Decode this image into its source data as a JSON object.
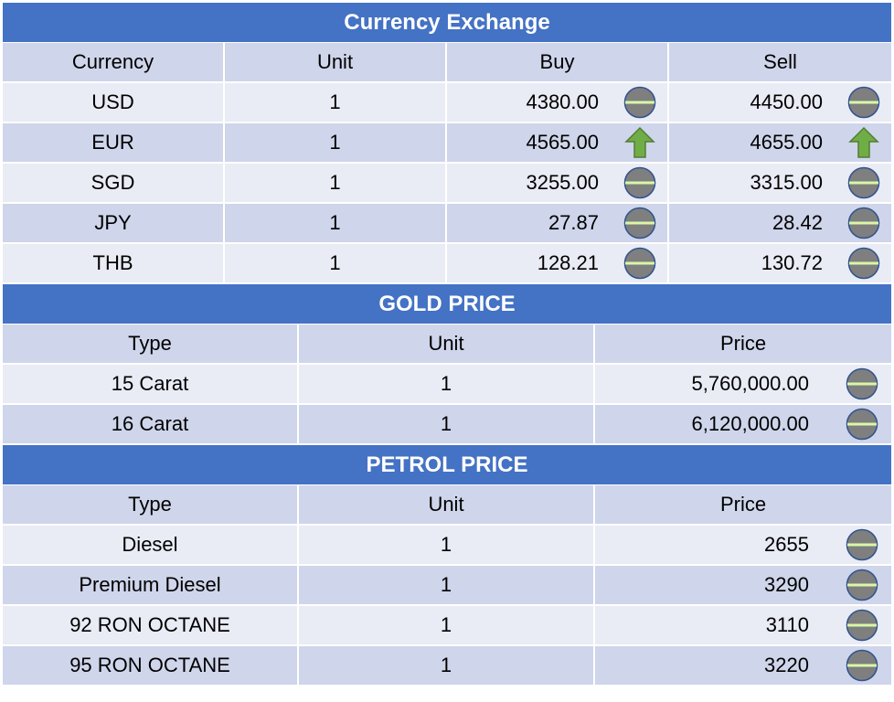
{
  "currency": {
    "title": "Currency Exchange",
    "headers": [
      "Currency",
      "Unit",
      "Buy",
      "Sell"
    ],
    "rows": [
      {
        "currency": "USD",
        "unit": "1",
        "buy": "4380.00",
        "buy_trend": "neutral",
        "sell": "4450.00",
        "sell_trend": "neutral"
      },
      {
        "currency": "EUR",
        "unit": "1",
        "buy": "4565.00",
        "buy_trend": "up",
        "sell": "4655.00",
        "sell_trend": "up"
      },
      {
        "currency": "SGD",
        "unit": "1",
        "buy": "3255.00",
        "buy_trend": "neutral",
        "sell": "3315.00",
        "sell_trend": "neutral"
      },
      {
        "currency": "JPY",
        "unit": "1",
        "buy": "27.87",
        "buy_trend": "neutral",
        "sell": "28.42",
        "sell_trend": "neutral"
      },
      {
        "currency": "THB",
        "unit": "1",
        "buy": "128.21",
        "buy_trend": "neutral",
        "sell": "130.72",
        "sell_trend": "neutral"
      }
    ]
  },
  "gold": {
    "title": "GOLD PRICE",
    "headers": [
      "Type",
      "Unit",
      "Price"
    ],
    "rows": [
      {
        "type": "15 Carat",
        "unit": "1",
        "price": "5,760,000.00",
        "trend": "neutral"
      },
      {
        "type": "16 Carat",
        "unit": "1",
        "price": "6,120,000.00",
        "trend": "neutral"
      }
    ]
  },
  "petrol": {
    "title": "PETROL PRICE",
    "headers": [
      "Type",
      "Unit",
      "Price"
    ],
    "rows": [
      {
        "type": "Diesel",
        "unit": "1",
        "price": "2655",
        "trend": "neutral"
      },
      {
        "type": "Premium Diesel",
        "unit": "1",
        "price": "3290",
        "trend": "neutral"
      },
      {
        "type": "92 RON OCTANE",
        "unit": "1",
        "price": "3110",
        "trend": "neutral"
      },
      {
        "type": "95 RON OCTANE",
        "unit": "1",
        "price": "3220",
        "trend": "neutral"
      }
    ]
  },
  "colors": {
    "header_blue": "#4472c4",
    "row_dark": "#cfd5ea",
    "row_light": "#e9ebf5",
    "up_arrow": "#70ad47",
    "neutral_icon": "#7f7f7f"
  }
}
